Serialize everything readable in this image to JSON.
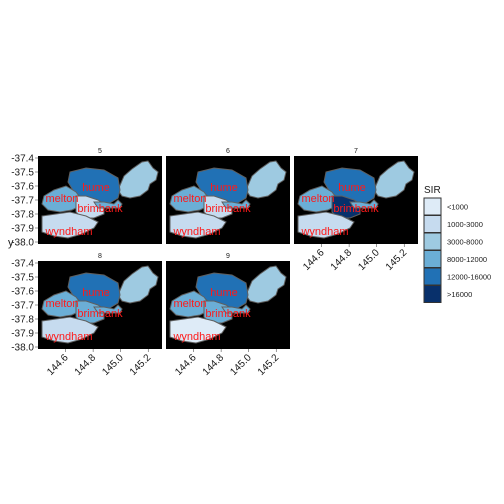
{
  "chart_data": {
    "type": "choropleth",
    "facet_variable_values": [
      "5",
      "6",
      "7",
      "8",
      "9"
    ],
    "y_axis_title": "y",
    "x_ticks": [
      "144.6",
      "144.8",
      "145.0",
      "145.2"
    ],
    "y_ticks": [
      "-37.4",
      "-37.5",
      "-37.6",
      "-37.7",
      "-37.8",
      "-37.9",
      "-38.0"
    ],
    "xlim": [
      144.4,
      145.3
    ],
    "ylim": [
      -38.0,
      -37.4
    ],
    "region_labels": [
      "hume",
      "melton",
      "brimbank",
      "wyndham"
    ],
    "legend": {
      "title": "SIR",
      "placement": "right",
      "bins": [
        {
          "label": "<1000",
          "color": "#deebf7"
        },
        {
          "label": "1000-3000",
          "color": "#c6dbef"
        },
        {
          "label": "3000-8000",
          "color": "#9ecae1"
        },
        {
          "label": "8000-12000",
          "color": "#6baed6"
        },
        {
          "label": "12000-16000",
          "color": "#2171b5"
        },
        {
          "label": ">16000",
          "color": "#08306b"
        }
      ]
    },
    "panel_background": "#000000",
    "panels": [
      {
        "facet": "5",
        "fills": {
          "nillumbik": 2,
          "hume": 4,
          "melton": 3,
          "brimbank": 1,
          "wyndham": 1,
          "whittlesea": 3
        }
      },
      {
        "facet": "6",
        "fills": {
          "nillumbik": 2,
          "hume": 4,
          "melton": 3,
          "brimbank": 1,
          "wyndham": 1,
          "whittlesea": 3
        }
      },
      {
        "facet": "7",
        "fills": {
          "nillumbik": 2,
          "hume": 4,
          "melton": 3,
          "brimbank": 5,
          "wyndham": 1,
          "whittlesea": 3
        }
      },
      {
        "facet": "8",
        "fills": {
          "nillumbik": 2,
          "hume": 4,
          "melton": 3,
          "brimbank": 3,
          "wyndham": 1,
          "whittlesea": 3
        }
      },
      {
        "facet": "9",
        "fills": {
          "nillumbik": 2,
          "hume": 4,
          "melton": 3,
          "brimbank": 3,
          "wyndham": 0,
          "whittlesea": 3
        }
      }
    ]
  }
}
